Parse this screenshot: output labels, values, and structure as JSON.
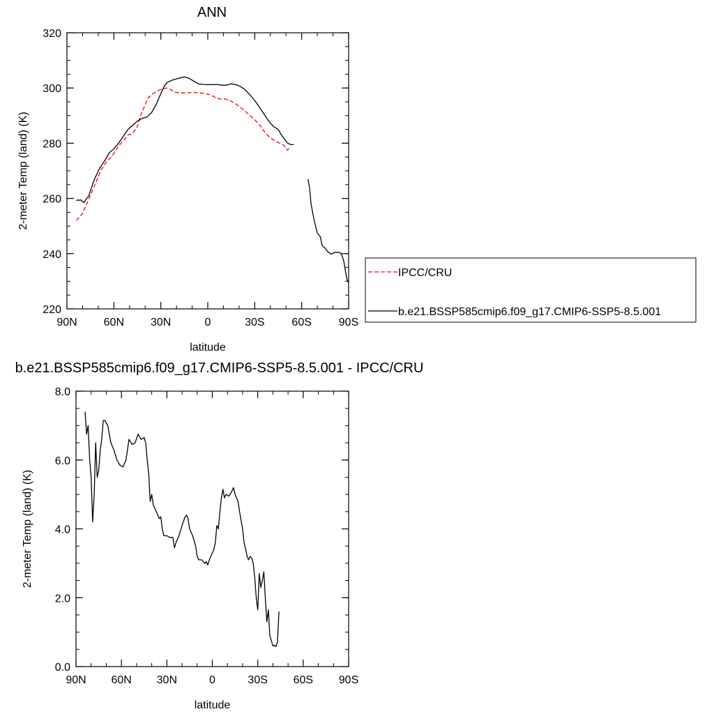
{
  "chart_data": [
    {
      "type": "line",
      "title": "ANN",
      "xlabel": "latitude",
      "ylabel": "2-meter Temp (land) (K)",
      "xlim": [
        90,
        -90
      ],
      "ylim": [
        220,
        320
      ],
      "x_tick_labels": [
        "90N",
        "60N",
        "30N",
        "0",
        "30S",
        "60S",
        "90S"
      ],
      "x_tick_values": [
        90,
        60,
        30,
        0,
        -30,
        -60,
        -90
      ],
      "y_tick_labels": [
        "220",
        "240",
        "260",
        "280",
        "300",
        "320"
      ],
      "y_tick_values": [
        220,
        240,
        260,
        280,
        300,
        320
      ],
      "legend_position": "right",
      "series": [
        {
          "name": "IPCC/CRU",
          "color": "#ff0000",
          "dash": "dashed",
          "segments": [
            [
              [
                84,
                252
              ],
              [
                83,
                252.5
              ],
              [
                82,
                253.5
              ],
              [
                81,
                254
              ],
              [
                80,
                254.5
              ],
              [
                79,
                256
              ],
              [
                77,
                258.5
              ],
              [
                74,
                262.5
              ],
              [
                71,
                266.5
              ],
              [
                68,
                270.5
              ],
              [
                65,
                273
              ],
              [
                61,
                275.5
              ],
              [
                57,
                279
              ],
              [
                53,
                281.5
              ],
              [
                51,
                283
              ],
              [
                48,
                283.5
              ],
              [
                45,
                286
              ],
              [
                43,
                290
              ],
              [
                40,
                294
              ],
              [
                38,
                296.5
              ],
              [
                35,
                298
              ],
              [
                32,
                299
              ],
              [
                29,
                299.7
              ],
              [
                26,
                300
              ],
              [
                24,
                299.5
              ],
              [
                21,
                298.5
              ],
              [
                18,
                298.2
              ],
              [
                14,
                298.2
              ],
              [
                10,
                298.4
              ],
              [
                6,
                298.3
              ],
              [
                2,
                298
              ],
              [
                -2,
                297.5
              ],
              [
                -5,
                296.5
              ],
              [
                -8,
                296
              ],
              [
                -11,
                296
              ],
              [
                -14,
                295.5
              ],
              [
                -18,
                294.2
              ],
              [
                -22,
                292.5
              ],
              [
                -26,
                290.5
              ],
              [
                -30,
                288.5
              ],
              [
                -34,
                286
              ],
              [
                -37,
                283.5
              ],
              [
                -40,
                282
              ],
              [
                -43,
                280.8
              ],
              [
                -46,
                280
              ],
              [
                -48,
                279.5
              ],
              [
                -49,
                279
              ],
              [
                -50,
                278
              ],
              [
                -51,
                277.5
              ],
              [
                -52,
                278.2
              ]
            ]
          ]
        },
        {
          "name": "b.e21.BSSP585cmip6.f09_g17.CMIP6-SSP5-8.5.001",
          "color": "#000000",
          "dash": "solid",
          "segments": [
            [
              [
                84,
                259.2
              ],
              [
                83,
                259.5
              ],
              [
                82,
                259.3
              ],
              [
                81,
                259.5
              ],
              [
                80,
                258.8
              ],
              [
                79,
                258.5
              ],
              [
                78,
                259.5
              ],
              [
                76,
                261
              ],
              [
                74,
                264.5
              ],
              [
                72,
                267.5
              ],
              [
                69,
                271
              ],
              [
                66,
                273.5
              ],
              [
                63,
                276.5
              ],
              [
                60,
                278
              ],
              [
                57,
                280
              ],
              [
                54,
                282.5
              ],
              [
                51,
                285
              ],
              [
                48,
                286.5
              ],
              [
                45,
                288
              ],
              [
                42,
                289
              ],
              [
                39,
                289.5
              ],
              [
                36,
                291
              ],
              [
                33,
                294
              ],
              [
                30,
                298
              ],
              [
                28,
                300.5
              ],
              [
                26,
                302
              ],
              [
                23,
                302.8
              ],
              [
                20,
                303.3
              ],
              [
                17,
                303.8
              ],
              [
                15,
                304
              ],
              [
                12,
                303.5
              ],
              [
                9,
                302.5
              ],
              [
                6,
                301.5
              ],
              [
                3,
                301.3
              ],
              [
                0,
                301.2
              ],
              [
                -3,
                301.2
              ],
              [
                -6,
                301.3
              ],
              [
                -9,
                301
              ],
              [
                -12,
                301
              ],
              [
                -15,
                301.5
              ],
              [
                -18,
                301.2
              ],
              [
                -21,
                300.5
              ],
              [
                -24,
                299.3
              ],
              [
                -27,
                297.5
              ],
              [
                -30,
                295.5
              ],
              [
                -33,
                293
              ],
              [
                -36,
                290.5
              ],
              [
                -39,
                288
              ],
              [
                -42,
                286
              ],
              [
                -45,
                285
              ],
              [
                -47,
                283
              ],
              [
                -49,
                281.5
              ],
              [
                -51,
                280
              ],
              [
                -53,
                279.5
              ],
              [
                -55,
                279.5
              ]
            ],
            [
              [
                -64,
                267
              ],
              [
                -65,
                264
              ],
              [
                -66,
                258
              ],
              [
                -68,
                252
              ],
              [
                -70,
                247.5
              ],
              [
                -72,
                246
              ],
              [
                -73,
                243
              ],
              [
                -75,
                242
              ],
              [
                -77,
                240.5
              ],
              [
                -79,
                239.8
              ],
              [
                -81,
                240.5
              ],
              [
                -83,
                240.5
              ],
              [
                -85,
                240.2
              ],
              [
                -86,
                239
              ],
              [
                -87,
                237
              ],
              [
                -88,
                233.5
              ],
              [
                -89,
                230.5
              ],
              [
                -90,
                229.5
              ]
            ]
          ]
        }
      ]
    },
    {
      "type": "line",
      "title": "b.e21.BSSP585cmip6.f09_g17.CMIP6-SSP5-8.5.001 - IPCC/CRU",
      "xlabel": "latitude",
      "ylabel": "2-meter Temp (land) (K)",
      "xlim": [
        90,
        -90
      ],
      "ylim": [
        0,
        8
      ],
      "x_tick_labels": [
        "90N",
        "60N",
        "30N",
        "0",
        "30S",
        "60S",
        "90S"
      ],
      "x_tick_values": [
        90,
        60,
        30,
        0,
        -30,
        -60,
        -90
      ],
      "y_tick_labels": [
        "0.0",
        "2.0",
        "4.0",
        "6.0",
        "8.0"
      ],
      "y_tick_values": [
        0,
        2,
        4,
        6,
        8
      ],
      "series": [
        {
          "name": "",
          "color": "#000000",
          "dash": "solid",
          "segments": [
            [
              [
                84,
                7.4
              ],
              [
                83,
                6.75
              ],
              [
                82,
                7.0
              ],
              [
                81,
                6.0
              ],
              [
                80,
                5.5
              ],
              [
                79,
                4.2
              ],
              [
                78,
                5.0
              ],
              [
                77,
                6.5
              ],
              [
                76,
                5.5
              ],
              [
                75,
                5.7
              ],
              [
                74,
                6.3
              ],
              [
                73,
                6.6
              ],
              [
                72,
                7.15
              ],
              [
                71,
                7.15
              ],
              [
                69,
                7.0
              ],
              [
                67,
                6.5
              ],
              [
                65,
                6.3
              ],
              [
                63,
                6.0
              ],
              [
                61,
                5.85
              ],
              [
                59,
                5.8
              ],
              [
                57,
                6.0
              ],
              [
                55,
                6.6
              ],
              [
                53,
                6.45
              ],
              [
                51,
                6.5
              ],
              [
                49,
                6.75
              ],
              [
                47,
                6.6
              ],
              [
                45,
                6.65
              ],
              [
                44,
                6.5
              ],
              [
                43,
                6.0
              ],
              [
                42,
                5.6
              ],
              [
                41,
                4.8
              ],
              [
                40,
                5.0
              ],
              [
                39,
                4.7
              ],
              [
                37,
                4.5
              ],
              [
                35,
                4.3
              ],
              [
                34,
                4.35
              ],
              [
                33,
                4.0
              ],
              [
                32,
                3.8
              ],
              [
                30,
                3.8
              ],
              [
                28,
                3.75
              ],
              [
                26,
                3.75
              ],
              [
                25,
                3.45
              ],
              [
                24,
                3.6
              ],
              [
                22,
                3.8
              ],
              [
                20,
                4.1
              ],
              [
                18,
                4.35
              ],
              [
                17,
                4.4
              ],
              [
                16,
                4.3
              ],
              [
                15,
                4.0
              ],
              [
                13,
                3.8
              ],
              [
                11,
                3.5
              ],
              [
                10,
                3.2
              ],
              [
                9,
                3.1
              ],
              [
                7,
                3.1
              ],
              [
                5,
                3.0
              ],
              [
                4,
                3.05
              ],
              [
                3,
                2.95
              ],
              [
                2,
                3.1
              ],
              [
                0,
                3.3
              ],
              [
                -1,
                3.4
              ],
              [
                -2,
                3.6
              ],
              [
                -3,
                4.1
              ],
              [
                -4,
                4.0
              ],
              [
                -5,
                4.5
              ],
              [
                -6,
                4.9
              ],
              [
                -7,
                5.15
              ],
              [
                -8,
                4.9
              ],
              [
                -9,
                5.0
              ],
              [
                -11,
                4.95
              ],
              [
                -13,
                5.1
              ],
              [
                -14,
                5.2
              ],
              [
                -15,
                5.0
              ],
              [
                -17,
                4.8
              ],
              [
                -18,
                4.5
              ],
              [
                -20,
                4.0
              ],
              [
                -21,
                3.6
              ],
              [
                -22,
                3.4
              ],
              [
                -23,
                3.2
              ],
              [
                -24,
                3.1
              ],
              [
                -25,
                3.2
              ],
              [
                -26,
                3.15
              ],
              [
                -27,
                3.0
              ],
              [
                -28,
                2.6
              ],
              [
                -29,
                2.0
              ],
              [
                -30,
                1.65
              ],
              [
                -31,
                2.7
              ],
              [
                -32,
                2.3
              ],
              [
                -33,
                2.5
              ],
              [
                -34,
                2.75
              ],
              [
                -35,
                2.0
              ],
              [
                -36,
                1.3
              ],
              [
                -37,
                1.65
              ],
              [
                -38,
                0.9
              ],
              [
                -39,
                0.75
              ],
              [
                -40,
                0.6
              ],
              [
                -41,
                0.62
              ],
              [
                -42,
                0.58
              ],
              [
                -43,
                0.7
              ],
              [
                -44,
                1.6
              ]
            ]
          ]
        }
      ]
    }
  ]
}
